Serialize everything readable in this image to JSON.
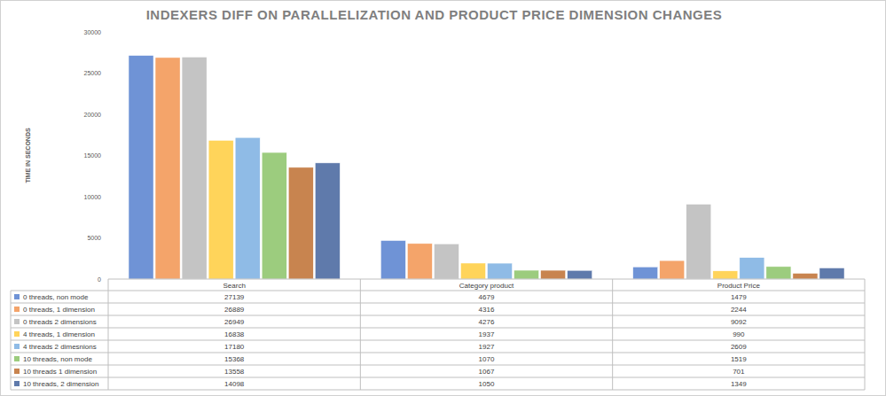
{
  "chart_data": {
    "type": "bar",
    "title": "INDEXERS DIFF ON PARALLELIZATION AND PRODUCT PRICE DIMENSION CHANGES",
    "y_label": "TIME IN SECONDS",
    "categories": [
      "Search",
      "Category product",
      "Product Price"
    ],
    "series": [
      {
        "name": "0 threads, non mode",
        "color": "#6f93d6",
        "values": [
          27139,
          4679,
          1479
        ]
      },
      {
        "name": "0 threads, 1 dimension",
        "color": "#f4a46a",
        "values": [
          26889,
          4316,
          2244
        ]
      },
      {
        "name": "0 threads 2 dimensions",
        "color": "#c4c4c4",
        "values": [
          26949,
          4276,
          9092
        ]
      },
      {
        "name": "4 threads, 1 dimension",
        "color": "#ffd45a",
        "values": [
          16838,
          1937,
          990
        ]
      },
      {
        "name": "4 threads 2 dimesnions",
        "color": "#8fbbe6",
        "values": [
          17180,
          1927,
          2609
        ]
      },
      {
        "name": "10 threads, non mode",
        "color": "#9ccc7e",
        "values": [
          15368,
          1070,
          1519
        ]
      },
      {
        "name": "10 threads 1 dimension",
        "color": "#c8844f",
        "values": [
          13558,
          1067,
          701
        ]
      },
      {
        "name": "10 threads, 2 dimension",
        "color": "#5f7aab",
        "values": [
          14098,
          1050,
          1349
        ]
      }
    ],
    "ylim": [
      0,
      30000
    ],
    "yticks": [
      0,
      5000,
      10000,
      15000,
      20000,
      25000,
      30000
    ],
    "grid": false
  }
}
